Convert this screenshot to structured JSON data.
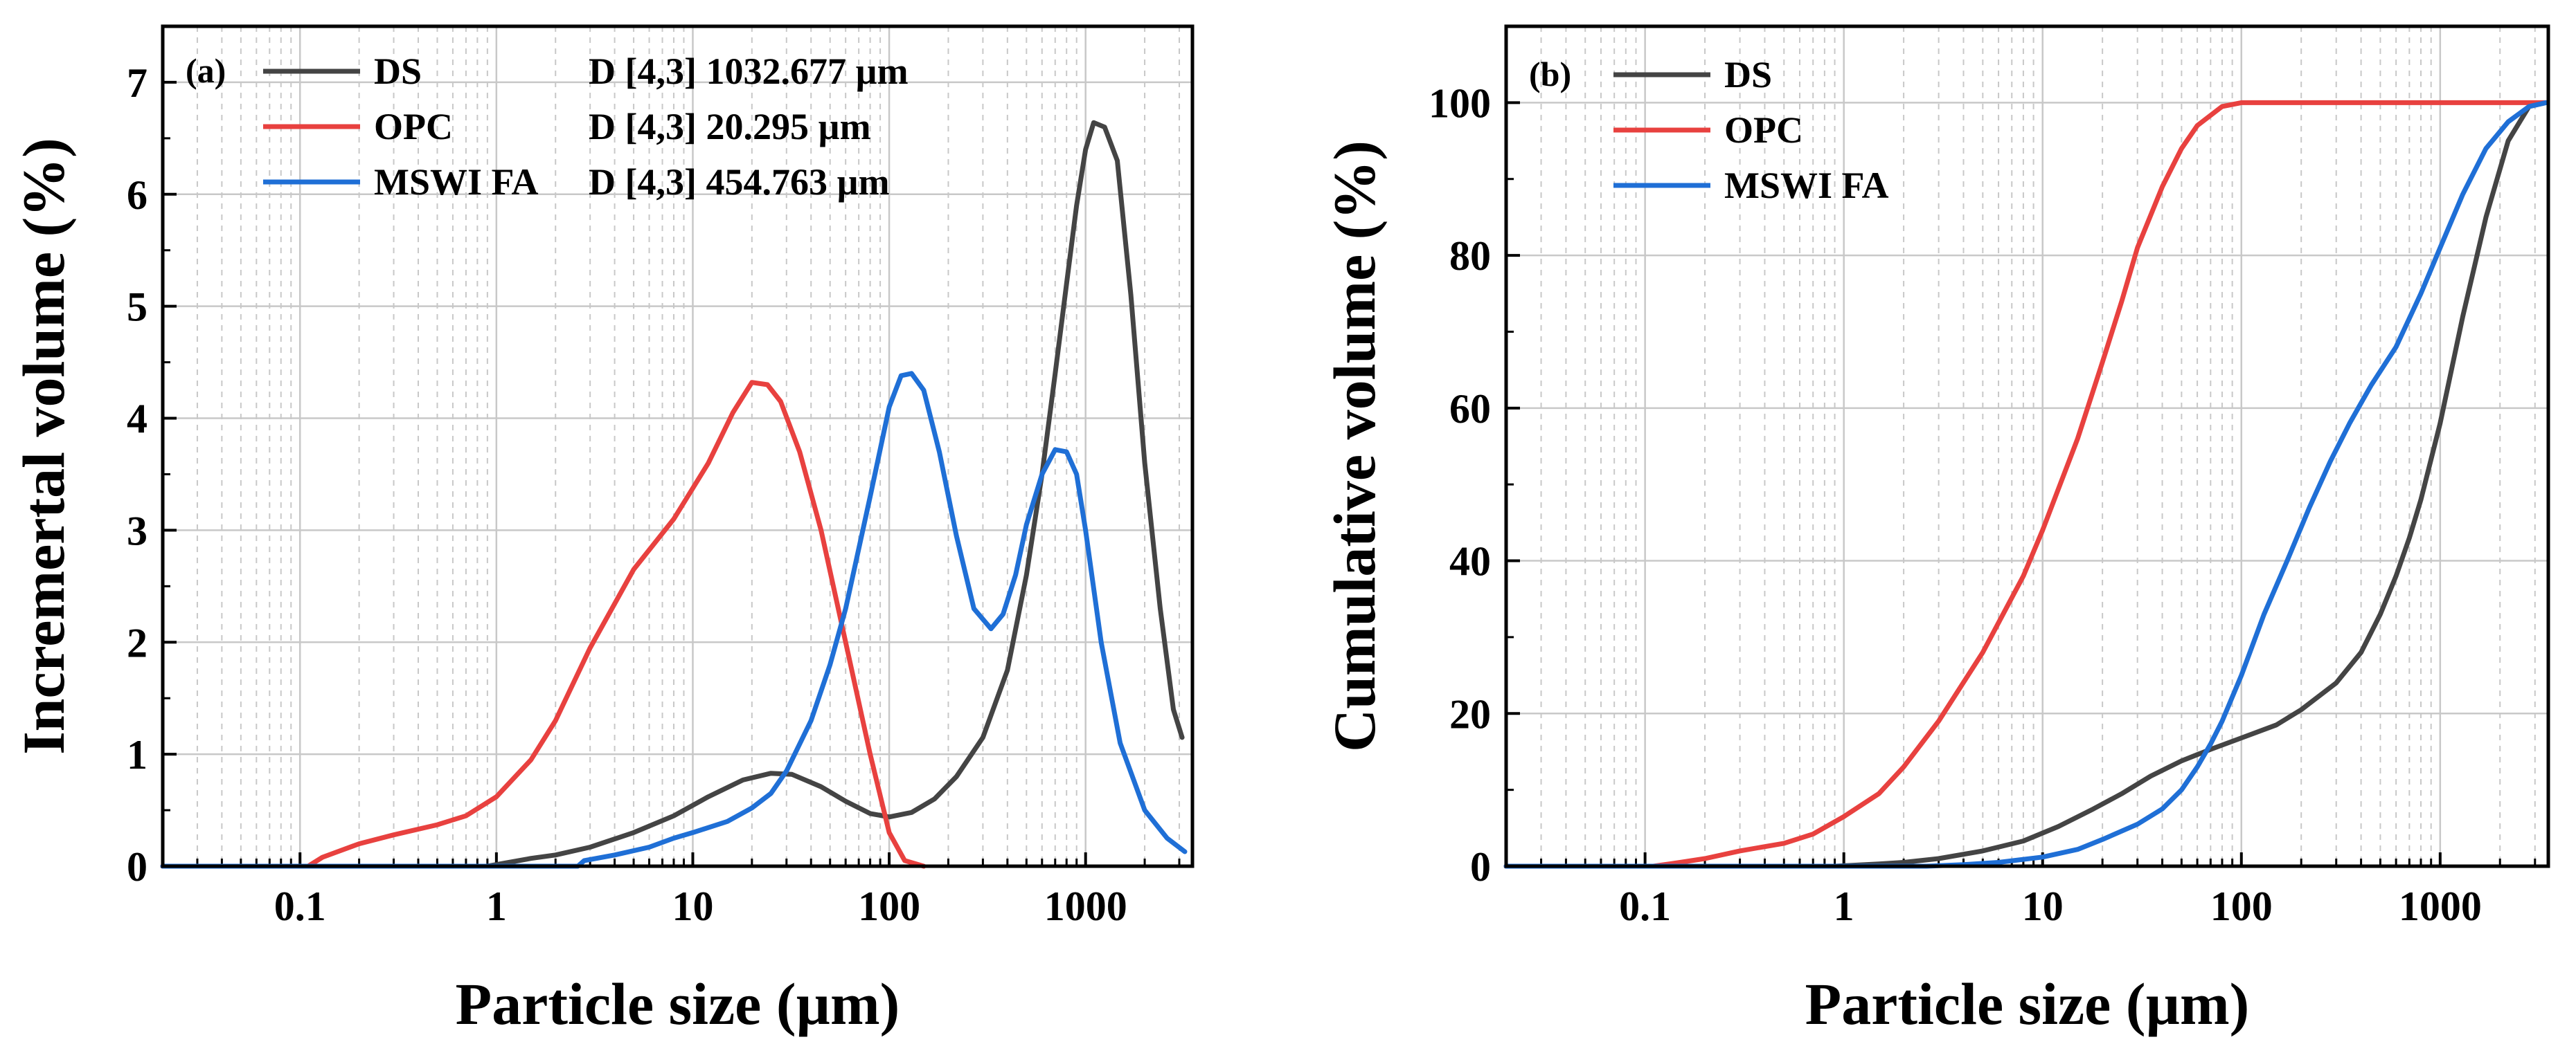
{
  "colors": {
    "DS": "#444444",
    "OPC": "#e8413f",
    "MSWI FA": "#1f6fd6",
    "grid": "#c8c8c8"
  },
  "chart_data": [
    {
      "type": "line",
      "panel": "(a)",
      "xscale": "log",
      "xlim": [
        0.02,
        3500
      ],
      "ylim": [
        0,
        7.5
      ],
      "xlabel": "Particle size (µm)",
      "ylabel": "Incremertal volume (%)",
      "xticks": [
        0.1,
        1,
        10,
        100,
        1000
      ],
      "xtick_labels": [
        "0.1",
        "1",
        "10",
        "100",
        "1000"
      ],
      "yticks": [
        0,
        1,
        2,
        3,
        4,
        5,
        6,
        7
      ],
      "ytick_labels": [
        "0",
        "1",
        "2",
        "3",
        "4",
        "5",
        "6",
        "7"
      ],
      "legend_position": "top-left",
      "series": [
        {
          "name": "DS",
          "annotation": "D [4,3] 1032.677 µm",
          "x": [
            0.02,
            0.9,
            1.5,
            2,
            3,
            5,
            8,
            12,
            18,
            25,
            32,
            45,
            60,
            80,
            100,
            130,
            170,
            220,
            300,
            400,
            500,
            600,
            700,
            800,
            900,
            1000,
            1100,
            1250,
            1450,
            1700,
            2000,
            2400,
            2800,
            3100
          ],
          "y": [
            0,
            0,
            0.07,
            0.1,
            0.17,
            0.3,
            0.45,
            0.62,
            0.77,
            0.83,
            0.82,
            0.71,
            0.58,
            0.47,
            0.44,
            0.48,
            0.6,
            0.8,
            1.15,
            1.75,
            2.6,
            3.5,
            4.4,
            5.2,
            5.9,
            6.4,
            6.64,
            6.6,
            6.3,
            5.1,
            3.6,
            2.3,
            1.4,
            1.15
          ]
        },
        {
          "name": "OPC",
          "annotation": "D [4,3] 20.295 µm",
          "x": [
            0.02,
            0.11,
            0.13,
            0.15,
            0.2,
            0.3,
            0.5,
            0.7,
            1,
            1.5,
            2,
            3,
            5,
            8,
            12,
            16,
            20,
            24,
            28,
            35,
            45,
            60,
            80,
            100,
            120,
            150
          ],
          "y": [
            0,
            0,
            0.08,
            0.12,
            0.2,
            0.28,
            0.37,
            0.45,
            0.62,
            0.95,
            1.3,
            1.95,
            2.65,
            3.1,
            3.6,
            4.05,
            4.32,
            4.3,
            4.15,
            3.7,
            3.0,
            2.0,
            1.0,
            0.3,
            0.05,
            0
          ]
        },
        {
          "name": "MSWI FA",
          "annotation": "D [4,3] 454.763 µm",
          "x": [
            0.02,
            2.6,
            2.8,
            4,
            6,
            8,
            10,
            15,
            20,
            25,
            30,
            40,
            50,
            60,
            80,
            100,
            115,
            130,
            150,
            180,
            220,
            270,
            330,
            380,
            440,
            500,
            600,
            700,
            800,
            900,
            1000,
            1200,
            1500,
            2000,
            2600,
            3200
          ],
          "y": [
            0,
            0,
            0.05,
            0.1,
            0.17,
            0.25,
            0.3,
            0.4,
            0.52,
            0.65,
            0.85,
            1.3,
            1.8,
            2.3,
            3.3,
            4.1,
            4.38,
            4.4,
            4.25,
            3.7,
            2.95,
            2.3,
            2.12,
            2.25,
            2.6,
            3.05,
            3.5,
            3.72,
            3.7,
            3.5,
            3.0,
            2.0,
            1.1,
            0.5,
            0.25,
            0.13
          ]
        }
      ]
    },
    {
      "type": "line",
      "panel": "(b)",
      "xscale": "log",
      "xlim": [
        0.02,
        3500
      ],
      "ylim": [
        0,
        110
      ],
      "xlabel": "Particle size (µm)",
      "ylabel": "Cumulative volume (%)",
      "xticks": [
        0.1,
        1,
        10,
        100,
        1000
      ],
      "xtick_labels": [
        "0.1",
        "1",
        "10",
        "100",
        "1000"
      ],
      "yticks": [
        0,
        20,
        40,
        60,
        80,
        100
      ],
      "ytick_labels": [
        "0",
        "20",
        "40",
        "60",
        "80",
        "100"
      ],
      "legend_position": "top-left",
      "series": [
        {
          "name": "DS",
          "x": [
            0.02,
            0.9,
            1.5,
            2,
            3,
            5,
            8,
            12,
            18,
            25,
            35,
            50,
            70,
            100,
            150,
            200,
            300,
            400,
            500,
            600,
            700,
            800,
            1000,
            1300,
            1700,
            2200,
            2800,
            3400
          ],
          "y": [
            0,
            0,
            0.3,
            0.5,
            1,
            2,
            3.3,
            5.2,
            7.5,
            9.5,
            11.8,
            13.8,
            15.3,
            16.8,
            18.5,
            20.5,
            24,
            28,
            33,
            38,
            43,
            48,
            58,
            72,
            85,
            95,
            99.5,
            100
          ]
        },
        {
          "name": "OPC",
          "x": [
            0.02,
            0.11,
            0.15,
            0.2,
            0.3,
            0.5,
            0.7,
            1,
            1.5,
            2,
            3,
            5,
            8,
            10,
            15,
            20,
            25,
            30,
            40,
            50,
            60,
            80,
            100,
            150,
            3400
          ],
          "y": [
            0,
            0,
            0.5,
            1,
            2,
            3,
            4.2,
            6.5,
            9.5,
            13,
            19,
            28,
            38,
            44,
            56,
            66,
            74,
            81,
            89,
            94,
            97,
            99.5,
            100,
            100,
            100
          ]
        },
        {
          "name": "MSWI FA",
          "x": [
            0.02,
            2.6,
            4,
            6,
            10,
            15,
            20,
            30,
            40,
            50,
            60,
            70,
            80,
            100,
            130,
            170,
            220,
            280,
            350,
            450,
            600,
            800,
            1000,
            1300,
            1700,
            2200,
            2800,
            3400
          ],
          "y": [
            0,
            0,
            0.2,
            0.5,
            1.2,
            2.2,
            3.5,
            5.5,
            7.5,
            10,
            13,
            16,
            19,
            25,
            33,
            40,
            47,
            53,
            58,
            63,
            68,
            75,
            81,
            88,
            94,
            97.5,
            99.5,
            100
          ]
        }
      ]
    }
  ]
}
